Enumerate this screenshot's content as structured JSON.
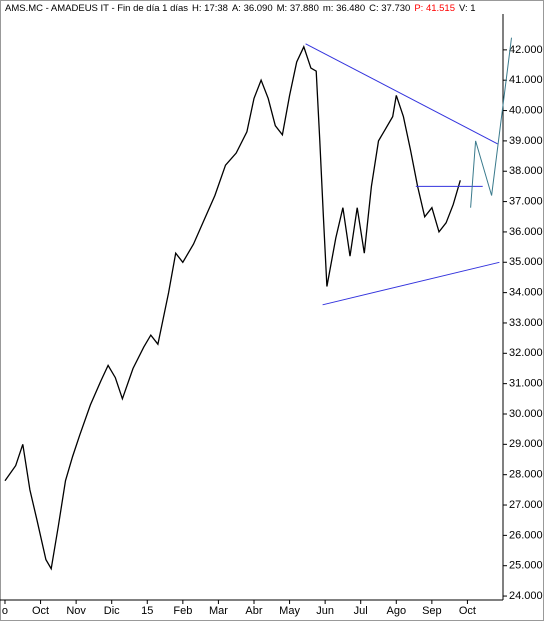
{
  "chart_data": {
    "type": "line",
    "header": [
      "AMS.MC - AMADEUS IT - Fin de día 1 días",
      "H: 17:38",
      "A: 36.090",
      "M: 37.880",
      "m: 36.480",
      "C: 37.730",
      "P: 41.515",
      "V: 1"
    ],
    "header_colors": [
      "#000000",
      "#000000",
      "#000000",
      "#000000",
      "#000000",
      "#000000",
      "#ff0000",
      "#000000"
    ],
    "xlim": [
      -0.14,
      14.0
    ],
    "xticks": [
      {
        "value": 0,
        "label": "o"
      },
      {
        "value": 1,
        "label": "Oct"
      },
      {
        "value": 2,
        "label": "Nov"
      },
      {
        "value": 3,
        "label": "Dic"
      },
      {
        "value": 4,
        "label": "15"
      },
      {
        "value": 5,
        "label": "Feb"
      },
      {
        "value": 6,
        "label": "Mar"
      },
      {
        "value": 7,
        "label": "Abr"
      },
      {
        "value": 8,
        "label": "May"
      },
      {
        "value": 9,
        "label": "Jun"
      },
      {
        "value": 10,
        "label": "Jul"
      },
      {
        "value": 11,
        "label": "Ago"
      },
      {
        "value": 12,
        "label": "Sep"
      },
      {
        "value": 13,
        "label": "Oct"
      }
    ],
    "ylim": [
      23.87,
      43.05
    ],
    "yticks": [
      {
        "value": 24,
        "label": "24.000"
      },
      {
        "value": 25,
        "label": "25.000"
      },
      {
        "value": 26,
        "label": "26.000"
      },
      {
        "value": 27,
        "label": "27.000"
      },
      {
        "value": 28,
        "label": "28.000"
      },
      {
        "value": 29,
        "label": "29.000"
      },
      {
        "value": 30,
        "label": "30.000"
      },
      {
        "value": 31,
        "label": "31.000"
      },
      {
        "value": 32,
        "label": "32.000"
      },
      {
        "value": 33,
        "label": "33.000"
      },
      {
        "value": 34,
        "label": "34.000"
      },
      {
        "value": 35,
        "label": "35.000"
      },
      {
        "value": 36,
        "label": "36.000"
      },
      {
        "value": 37,
        "label": "37.000"
      },
      {
        "value": 38,
        "label": "38.000"
      },
      {
        "value": 39,
        "label": "39.000"
      },
      {
        "value": 40,
        "label": "40.000"
      },
      {
        "value": 41,
        "label": "41.000"
      },
      {
        "value": 42,
        "label": "42.000"
      }
    ],
    "series": [
      {
        "color": "#000000",
        "x": [
          0,
          0.3,
          0.5,
          0.7,
          0.9,
          1.15,
          1.3,
          1.5,
          1.7,
          1.9,
          2.1,
          2.4,
          2.7,
          2.9,
          3.1,
          3.3,
          3.6,
          3.9,
          4.1,
          4.3,
          4.6,
          4.8,
          5.0,
          5.3,
          5.6,
          5.9,
          6.2,
          6.5,
          6.8,
          7.0,
          7.2,
          7.4,
          7.6,
          7.8,
          8.0,
          8.2,
          8.4,
          8.6,
          8.75,
          8.85,
          8.95,
          9.05,
          9.3,
          9.5,
          9.7,
          9.9,
          10.1,
          10.3,
          10.5,
          10.7,
          10.9,
          11.0,
          11.2,
          11.4,
          11.6,
          11.8,
          12.0,
          12.2,
          12.4,
          12.6,
          12.8
        ],
        "values": [
          27.8,
          28.3,
          29.0,
          27.5,
          26.5,
          25.2,
          24.9,
          26.3,
          27.8,
          28.6,
          29.3,
          30.3,
          31.1,
          31.6,
          31.2,
          30.5,
          31.5,
          32.2,
          32.6,
          32.3,
          34.0,
          35.3,
          35.0,
          35.6,
          36.4,
          37.2,
          38.2,
          38.6,
          39.3,
          40.4,
          41.0,
          40.4,
          39.5,
          39.2,
          40.5,
          41.6,
          42.1,
          41.4,
          41.3,
          39.0,
          36.5,
          34.2,
          35.8,
          36.8,
          35.2,
          36.8,
          35.3,
          37.5,
          39.0,
          39.4,
          39.8,
          40.5,
          39.8,
          38.7,
          37.5,
          36.5,
          36.8,
          36.0,
          36.3,
          36.9,
          37.7
        ]
      }
    ],
    "lines": [
      {
        "color": "#3333dd",
        "x": [
          8.45,
          13.85
        ],
        "values": [
          42.2,
          38.9
        ]
      },
      {
        "color": "#3333dd",
        "x": [
          8.93,
          13.9
        ],
        "values": [
          33.6,
          35.0
        ]
      },
      {
        "color": "#3333dd",
        "x": [
          11.55,
          13.43
        ],
        "values": [
          37.5,
          37.5
        ]
      },
      {
        "color": "#3a7a8c",
        "x": [
          13.09,
          13.23,
          13.68,
          14.24
        ],
        "values": [
          36.8,
          39.0,
          37.2,
          42.4
        ]
      }
    ]
  }
}
